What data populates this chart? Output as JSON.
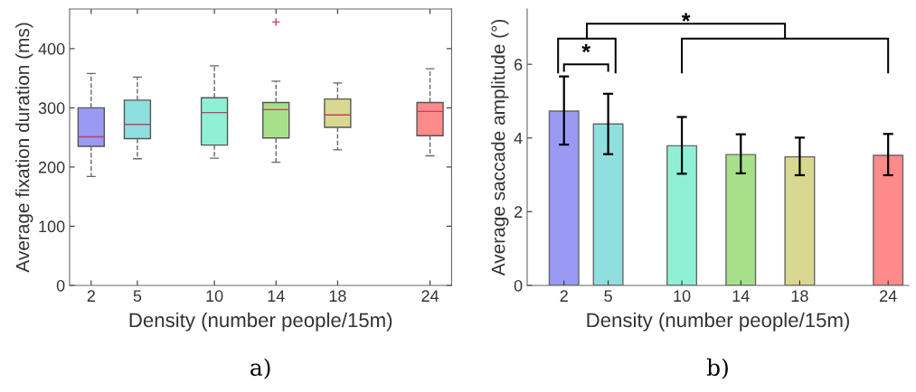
{
  "chart_data": [
    {
      "type": "box",
      "xlabel": "Density (number people/15m)",
      "ylabel": "Average fixation duration (ms)",
      "x": [
        2,
        5,
        10,
        14,
        18,
        24
      ],
      "boxes": [
        {
          "low": 184,
          "q1": 235,
          "median": 251,
          "q3": 300,
          "high": 358
        },
        {
          "low": 214,
          "q1": 248,
          "median": 272,
          "q3": 313,
          "high": 352
        },
        {
          "low": 215,
          "q1": 237,
          "median": 292,
          "q3": 317,
          "high": 371
        },
        {
          "low": 208,
          "q1": 249,
          "median": 297,
          "q3": 309,
          "high": 345,
          "outliers": [
            445
          ]
        },
        {
          "low": 229,
          "q1": 267,
          "median": 288,
          "q3": 315,
          "high": 342
        },
        {
          "low": 219,
          "q1": 253,
          "median": 294,
          "q3": 309,
          "high": 366
        }
      ],
      "colors": [
        "#9a9af5",
        "#8fdfdf",
        "#8ff0d6",
        "#a8e08a",
        "#d8d890",
        "#ff8a8a"
      ],
      "xlim": [
        0.6,
        25.4
      ],
      "xticks": [
        2,
        5,
        10,
        14,
        18,
        24
      ],
      "ylim": [
        0,
        467
      ],
      "yticks": [
        0,
        100,
        200,
        300,
        400
      ],
      "grid": false,
      "legend": false,
      "annotations": [
        "a)"
      ]
    },
    {
      "type": "bar",
      "xlabel": "Density (number people/15m)",
      "ylabel": "Average saccade amplitude (°)",
      "x": [
        2,
        5,
        10,
        14,
        18,
        24
      ],
      "values": [
        4.73,
        4.38,
        3.79,
        3.55,
        3.49,
        3.53
      ],
      "errors": [
        [
          3.82,
          5.67
        ],
        [
          3.56,
          5.2
        ],
        [
          3.03,
          4.57
        ],
        [
          3.04,
          4.1
        ],
        [
          2.99,
          4.01
        ],
        [
          2.99,
          4.11
        ]
      ],
      "colors": [
        "#9a9af5",
        "#8fdfdf",
        "#8ff0d6",
        "#a8e08a",
        "#d8d890",
        "#ff8a8a"
      ],
      "xlim": [
        -0.5,
        25.4
      ],
      "xticks": [
        2,
        5,
        10,
        14,
        18,
        24
      ],
      "ylim": [
        0,
        7.5
      ],
      "yticks": [
        0,
        2,
        4,
        6
      ],
      "grid": false,
      "legend": false,
      "annotations": [
        "*",
        "*",
        "b)"
      ]
    }
  ]
}
